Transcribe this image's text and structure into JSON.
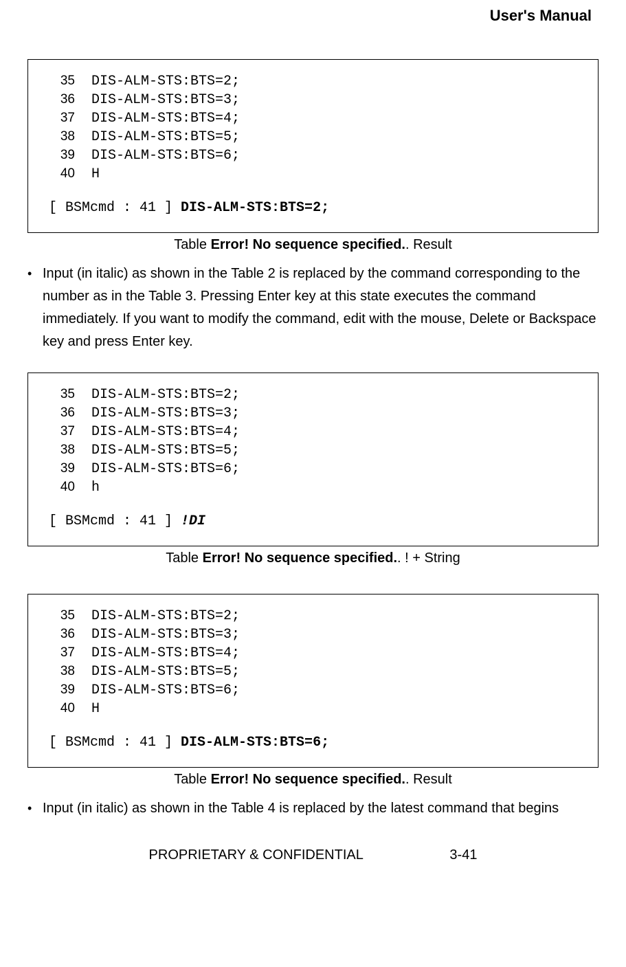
{
  "header": {
    "title": "User's Manual"
  },
  "boxes": [
    {
      "rows": [
        {
          "n": "35",
          "cmd": "DIS-ALM-STS:BTS=2;"
        },
        {
          "n": "36",
          "cmd": "DIS-ALM-STS:BTS=3;"
        },
        {
          "n": "37",
          "cmd": "DIS-ALM-STS:BTS=4;"
        },
        {
          "n": "38",
          "cmd": "DIS-ALM-STS:BTS=5;"
        },
        {
          "n": "39",
          "cmd": "DIS-ALM-STS:BTS=6;"
        },
        {
          "n": "40",
          "cmd": "H"
        }
      ],
      "prompt_prefix": "[ BSMcmd : 41 ] ",
      "prompt_value": "DIS-ALM-STS:BTS=2;",
      "prompt_style": "bold"
    },
    {
      "rows": [
        {
          "n": "35",
          "cmd": "DIS-ALM-STS:BTS=2;"
        },
        {
          "n": "36",
          "cmd": "DIS-ALM-STS:BTS=3;"
        },
        {
          "n": "37",
          "cmd": "DIS-ALM-STS:BTS=4;"
        },
        {
          "n": "38",
          "cmd": "DIS-ALM-STS:BTS=5;"
        },
        {
          "n": "39",
          "cmd": "DIS-ALM-STS:BTS=6;"
        },
        {
          "n": "40",
          "cmd": "h"
        }
      ],
      "prompt_prefix": "[ BSMcmd : 41 ] ",
      "prompt_value": "!DI",
      "prompt_style": "italic"
    },
    {
      "rows": [
        {
          "n": "35",
          "cmd": "DIS-ALM-STS:BTS=2;"
        },
        {
          "n": "36",
          "cmd": "DIS-ALM-STS:BTS=3;"
        },
        {
          "n": "37",
          "cmd": "DIS-ALM-STS:BTS=4;"
        },
        {
          "n": "38",
          "cmd": "DIS-ALM-STS:BTS=5;"
        },
        {
          "n": "39",
          "cmd": "DIS-ALM-STS:BTS=6;"
        },
        {
          "n": "40",
          "cmd": "H"
        }
      ],
      "prompt_prefix": "[ BSMcmd : 41 ] ",
      "prompt_value": "DIS-ALM-STS:BTS=6;",
      "prompt_style": "bold"
    }
  ],
  "captions": [
    {
      "pre": "Table ",
      "err": "Error! No sequence specified.",
      "suf": ". Result"
    },
    {
      "pre": "Table ",
      "err": "Error! No sequence specified.",
      "suf": ". ! + String"
    },
    {
      "pre": "Table ",
      "err": "Error! No sequence specified.",
      "suf": ". Result"
    }
  ],
  "bullets": [
    "Input (in italic) as shown in the Table 2 is replaced by the command corresponding to the number as in the Table 3. Pressing Enter key at this state executes the command immediately. If you want to modify the command, edit with the mouse, Delete or Backspace key and press Enter key.",
    "Input (in italic) as shown in the Table 4 is replaced by the latest command that begins"
  ],
  "footer": {
    "left": "PROPRIETARY & CONFIDENTIAL",
    "right": "3-41"
  },
  "bullet_glyph": "•"
}
